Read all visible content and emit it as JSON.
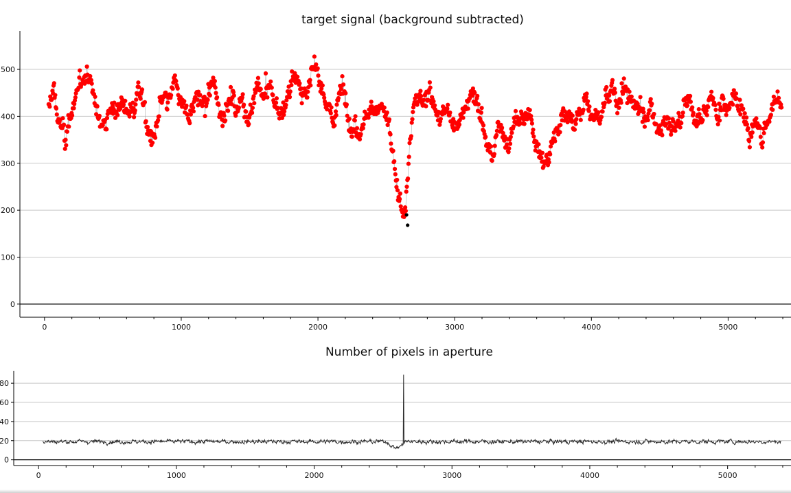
{
  "chart_data": [
    {
      "type": "scatter",
      "title": "target signal (background subtracted)",
      "xlim": [
        -180,
        5460
      ],
      "ylim": [
        -28,
        582
      ],
      "x_ticks": [
        0,
        1000,
        2000,
        3000,
        4000,
        5000
      ],
      "y_ticks": [
        0,
        100,
        200,
        300,
        400,
        500
      ],
      "grid": "horizontal",
      "colors": {
        "points": "#ff0000",
        "line": "#999999",
        "highlight": "#000000",
        "grid": "#c8c8c8"
      },
      "series": [
        {
          "values_sampled": {
            "x": [
              30,
              70,
              100,
              150,
              180,
              230,
              280,
              310,
              360,
              400,
              440,
              480,
              520,
              560,
              600,
              650,
              680,
              720,
              760,
              790,
              820,
              860,
              900,
              940,
              980,
              1020,
              1060,
              1100,
              1140,
              1180,
              1220,
              1260,
              1300,
              1340,
              1380,
              1400,
              1440,
              1480,
              1520,
              1560,
              1600,
              1640,
              1680,
              1720,
              1760,
              1800,
              1840,
              1880,
              1920,
              1960,
              2000,
              2040,
              2080,
              2110,
              2150,
              2190,
              2230,
              2270,
              2310,
              2350,
              2390,
              2430,
              2470,
              2510,
              2540,
              2570,
              2590,
              2610,
              2630,
              2650,
              2670,
              2700,
              2740,
              2780,
              2820,
              2860,
              2900,
              2940,
              2980,
              3020,
              3060,
              3100,
              3140,
              3180,
              3220,
              3250,
              3280,
              3320,
              3360,
              3400,
              3440,
              3480,
              3520,
              3560,
              3600,
              3640,
              3680,
              3720,
              3760,
              3800,
              3840,
              3880,
              3920,
              3960,
              4000,
              4040,
              4080,
              4120,
              4160,
              4200,
              4240,
              4280,
              4320,
              4360,
              4400,
              4440,
              4480,
              4520,
              4560,
              4600,
              4640,
              4680,
              4720,
              4760,
              4800,
              4840,
              4880,
              4920,
              4960,
              5000,
              5040,
              5080,
              5120,
              5160,
              5200,
              5240,
              5280,
              5320,
              5360,
              5390
            ],
            "y": [
              410,
              460,
              390,
              350,
              400,
              420,
              470,
              500,
              440,
              380,
              400,
              420,
              410,
              440,
              420,
              400,
              460,
              430,
              360,
              350,
              380,
              420,
              410,
              450,
              440,
              420,
              380,
              440,
              430,
              410,
              450,
              420,
              400,
              460,
              440,
              410,
              440,
              400,
              430,
              450,
              420,
              460,
              440,
              410,
              430,
              460,
              480,
              470,
              450,
              490,
              470,
              440,
              420,
              380,
              440,
              460,
              420,
              400,
              390,
              410,
              430,
              440,
              420,
              380,
              330,
              250,
              220,
              190,
              200,
              280,
              350,
              420,
              440,
              410,
              460,
              430,
              400,
              420,
              380,
              360,
              400,
              460,
              440,
              420,
              360,
              330,
              310,
              390,
              360,
              340,
              410,
              380,
              390,
              400,
              350,
              320,
              310,
              360,
              400,
              430,
              410,
              380,
              400,
              440,
              410,
              380,
              420,
              460,
              470,
              430,
              470,
              440,
              420,
              410,
              380,
              420,
              360,
              380,
              380,
              400,
              420,
              410,
              430,
              400,
              420,
              410,
              440,
              420,
              430,
              410,
              450,
              420,
              400,
              380,
              410,
              350,
              380,
              420,
              440,
              430
            ]
          },
          "highlighted_points": [
            {
              "x": 2648,
              "y": 190
            },
            {
              "x": 2656,
              "y": 168
            }
          ]
        }
      ]
    },
    {
      "type": "line",
      "title": "Number of pixels in aperture",
      "xlim": [
        -180,
        5460
      ],
      "ylim": [
        -6,
        93
      ],
      "x_ticks": [
        0,
        1000,
        2000,
        3000,
        4000,
        5000
      ],
      "y_ticks": [
        0,
        20,
        40,
        60,
        80
      ],
      "grid": "horizontal",
      "colors": {
        "line": "#2b2b2b",
        "grid": "#c8c8c8"
      },
      "series": [
        {
          "baseline": 19,
          "noise": 2,
          "dip": {
            "x_from": 2530,
            "x_to": 2660,
            "y_min": 11
          },
          "spike": {
            "x": 2648,
            "y": 89
          },
          "x_range": [
            30,
            5390
          ]
        }
      ]
    }
  ]
}
